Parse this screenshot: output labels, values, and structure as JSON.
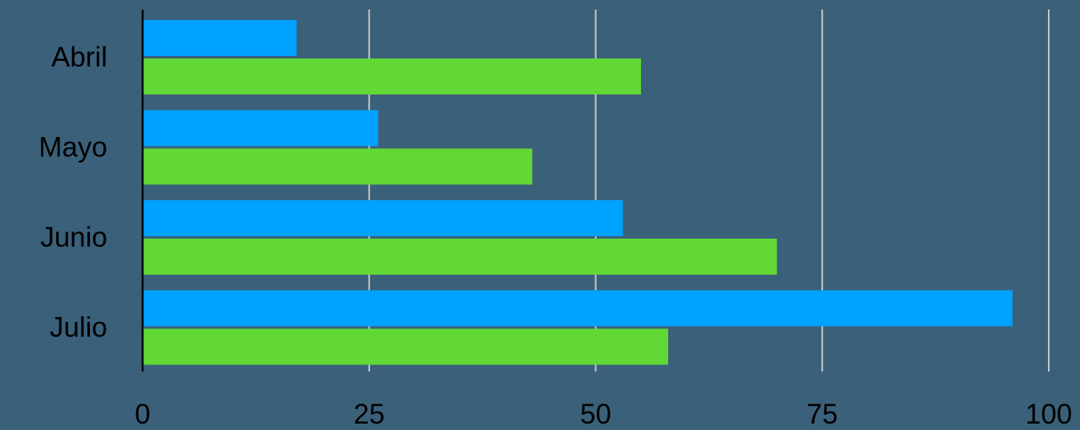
{
  "chart_data": {
    "type": "bar",
    "orientation": "horizontal",
    "categories": [
      "Abril",
      "Mayo",
      "Junio",
      "Julio"
    ],
    "series": [
      {
        "values": [
          17,
          26,
          53,
          96
        ],
        "color": "#00a2ff"
      },
      {
        "values": [
          55,
          43,
          70,
          58
        ],
        "color": "#61d836"
      }
    ],
    "x_ticks": [
      "0",
      "25",
      "50",
      "75",
      "100"
    ],
    "xlim": [
      0,
      100
    ],
    "grid": true,
    "grid_color": "#c8c8c8",
    "axis_color": "#000000",
    "background": "#3b6079",
    "title": "",
    "xlabel": "",
    "ylabel": ""
  }
}
